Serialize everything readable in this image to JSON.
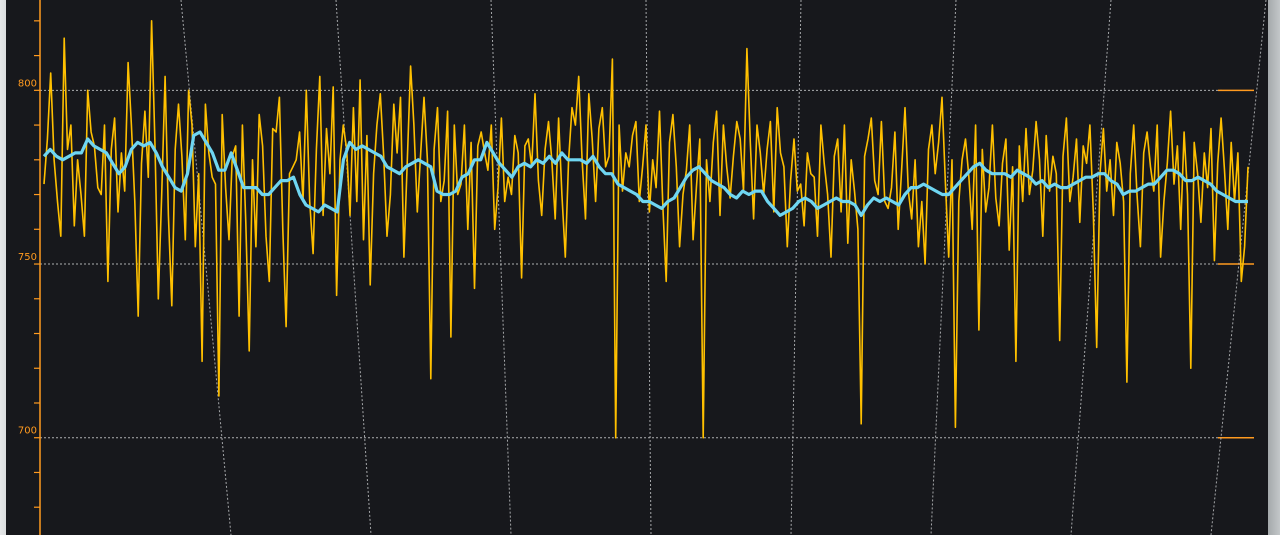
{
  "chart_data": {
    "type": "line",
    "title": "",
    "xlabel": "",
    "ylabel": "",
    "ylim": [
      672,
      826
    ],
    "yticks": [
      700,
      750,
      800
    ],
    "ytick_labels": [
      "700",
      "750",
      "800"
    ],
    "grid": true,
    "vertical_gridlines": 8,
    "colors": {
      "background": "#17181c",
      "grid": "#c8cacc",
      "axis": "#ff9a1f",
      "raw": "#ffc000",
      "smoothed": "#6fd6f2"
    },
    "series": [
      {
        "name": "",
        "color": "#ffc000",
        "values": [
          773,
          786,
          805,
          780,
          768,
          758,
          815,
          783,
          790,
          761,
          780,
          770,
          758,
          800,
          788,
          784,
          772,
          770,
          790,
          745,
          783,
          792,
          765,
          782,
          771,
          808,
          790,
          768,
          735,
          779,
          794,
          775,
          820,
          784,
          740,
          770,
          804,
          764,
          738,
          783,
          796,
          781,
          757,
          800,
          790,
          755,
          776,
          722,
          796,
          782,
          775,
          773,
          712,
          793,
          772,
          757,
          781,
          784,
          735,
          790,
          762,
          725,
          780,
          755,
          793,
          784,
          758,
          745,
          789,
          788,
          798,
          760,
          732,
          776,
          778,
          780,
          788,
          768,
          800,
          768,
          753,
          783,
          804,
          764,
          789,
          776,
          801,
          741,
          780,
          790,
          783,
          764,
          795,
          768,
          803,
          757,
          787,
          744,
          776,
          790,
          799,
          781,
          758,
          770,
          796,
          782,
          798,
          752,
          779,
          807,
          790,
          765,
          782,
          798,
          780,
          717,
          783,
          795,
          768,
          774,
          794,
          729,
          790,
          770,
          773,
          790,
          760,
          785,
          743,
          784,
          788,
          782,
          777,
          790,
          760,
          772,
          792,
          768,
          775,
          770,
          787,
          782,
          746,
          784,
          786,
          778,
          799,
          774,
          764,
          783,
          791,
          780,
          763,
          792,
          770,
          752,
          780,
          795,
          790,
          804,
          780,
          763,
          799,
          786,
          768,
          789,
          795,
          778,
          781,
          809,
          700,
          790,
          771,
          782,
          778,
          787,
          791,
          768,
          778,
          790,
          765,
          780,
          772,
          794,
          767,
          745,
          785,
          793,
          778,
          755,
          770,
          777,
          790,
          757,
          772,
          786,
          700,
          780,
          768,
          785,
          794,
          764,
          790,
          778,
          769,
          781,
          791,
          786,
          771,
          812,
          785,
          763,
          790,
          782,
          770,
          783,
          791,
          765,
          795,
          782,
          778,
          755,
          774,
          786,
          771,
          773,
          761,
          782,
          776,
          775,
          758,
          790,
          779,
          770,
          752,
          781,
          786,
          765,
          790,
          756,
          780,
          771,
          760,
          704,
          781,
          786,
          792,
          774,
          770,
          791,
          768,
          766,
          772,
          788,
          760,
          777,
          795,
          771,
          763,
          780,
          755,
          768,
          750,
          783,
          790,
          776,
          785,
          798,
          774,
          752,
          780,
          703,
          768,
          780,
          786,
          775,
          760,
          790,
          731,
          783,
          765,
          772,
          790,
          769,
          761,
          779,
          786,
          754,
          778,
          722,
          784,
          768,
          789,
          770,
          777,
          791,
          780,
          758,
          787,
          771,
          781,
          776,
          728,
          781,
          792,
          768,
          775,
          786,
          762,
          784,
          779,
          790,
          765,
          726,
          776,
          789,
          771,
          780,
          764,
          785,
          779,
          768,
          716,
          776,
          790,
          770,
          755,
          782,
          788,
          778,
          771,
          790,
          752,
          768,
          779,
          794,
          773,
          784,
          760,
          788,
          770,
          720,
          785,
          776,
          762,
          782,
          772,
          789,
          751,
          779,
          792,
          777,
          760,
          785,
          768,
          782,
          745,
          755,
          778
        ]
      },
      {
        "name": "",
        "color": "#6fd6f2",
        "values": [
          781,
          783,
          781,
          780,
          781,
          782,
          782,
          786,
          784,
          783,
          782,
          779,
          776,
          778,
          783,
          785,
          784,
          785,
          782,
          778,
          775,
          772,
          771,
          776,
          787,
          788,
          785,
          782,
          777,
          777,
          782,
          777,
          772,
          772,
          772,
          770,
          770,
          772,
          774,
          774,
          775,
          770,
          767,
          766,
          765,
          767,
          766,
          765,
          780,
          785,
          783,
          784,
          783,
          782,
          781,
          778,
          777,
          776,
          778,
          779,
          780,
          779,
          778,
          771,
          770,
          770,
          771,
          775,
          776,
          780,
          780,
          785,
          782,
          779,
          777,
          775,
          778,
          779,
          778,
          780,
          779,
          781,
          779,
          782,
          780,
          780,
          780,
          779,
          781,
          778,
          776,
          776,
          773,
          772,
          771,
          770,
          768,
          768,
          767,
          766,
          768,
          769,
          772,
          775,
          777,
          778,
          776,
          774,
          773,
          772,
          770,
          769,
          771,
          770,
          771,
          771,
          768,
          766,
          764,
          765,
          766,
          768,
          769,
          768,
          766,
          767,
          768,
          769,
          768,
          768,
          767,
          764,
          767,
          769,
          768,
          769,
          768,
          767,
          770,
          772,
          772,
          773,
          772,
          771,
          770,
          770,
          772,
          774,
          776,
          778,
          779,
          777,
          776,
          776,
          776,
          775,
          777,
          776,
          775,
          773,
          774,
          772,
          773,
          772,
          772,
          773,
          774,
          775,
          775,
          776,
          776,
          774,
          773,
          770,
          771,
          771,
          772,
          773,
          773,
          775,
          777,
          777,
          776,
          774,
          774,
          775,
          774,
          773,
          771,
          770,
          769,
          768,
          768,
          768
        ]
      }
    ]
  }
}
